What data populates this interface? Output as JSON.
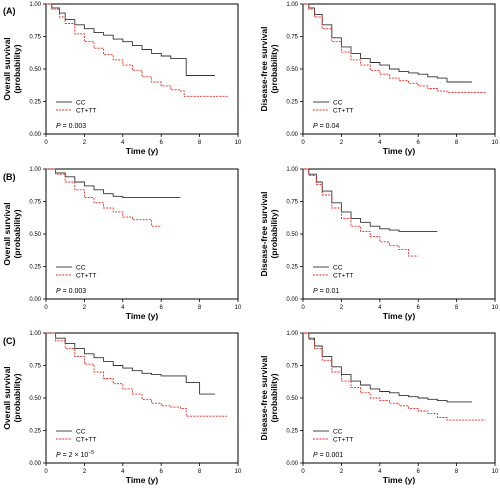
{
  "chart_data": [
    {
      "panel": "A",
      "type": "line",
      "ylabel_line1": "Overall survival",
      "ylabel_line2": "(probability)",
      "xlabel": "Time (y)",
      "xlim": [
        0,
        10
      ],
      "ylim": [
        0,
        1
      ],
      "xticks": [
        "0",
        "2",
        "4",
        "6",
        "8",
        "10"
      ],
      "yticks": [
        "0.00",
        "0.25",
        "0.50",
        "0.75",
        "1.00"
      ],
      "pvalue_prefix": "P",
      "pvalue_text": " = 0.003",
      "pvalue_sup": "",
      "series": [
        {
          "name": "CC",
          "color": "#333333",
          "style": "solid",
          "points": [
            [
              0,
              1.0
            ],
            [
              0.3,
              0.97
            ],
            [
              0.7,
              0.93
            ],
            [
              1.0,
              0.88
            ],
            [
              1.5,
              0.84
            ],
            [
              2.0,
              0.81
            ],
            [
              2.5,
              0.78
            ],
            [
              3.0,
              0.76
            ],
            [
              3.5,
              0.73
            ],
            [
              4.0,
              0.71
            ],
            [
              4.5,
              0.68
            ],
            [
              5.0,
              0.65
            ],
            [
              5.5,
              0.62
            ],
            [
              6.0,
              0.6
            ],
            [
              6.5,
              0.58
            ],
            [
              7.0,
              0.58
            ],
            [
              7.3,
              0.45
            ],
            [
              8.8,
              0.45
            ]
          ]
        },
        {
          "name": "CT+TT",
          "color": "#e8271f",
          "style": "dashed",
          "points": [
            [
              0,
              1.0
            ],
            [
              0.3,
              0.96
            ],
            [
              0.7,
              0.9
            ],
            [
              1.0,
              0.85
            ],
            [
              1.5,
              0.77
            ],
            [
              2.0,
              0.71
            ],
            [
              2.5,
              0.66
            ],
            [
              3.0,
              0.61
            ],
            [
              3.5,
              0.57
            ],
            [
              4.0,
              0.53
            ],
            [
              4.5,
              0.49
            ],
            [
              5.0,
              0.44
            ],
            [
              5.5,
              0.4
            ],
            [
              6.0,
              0.37
            ],
            [
              6.5,
              0.34
            ],
            [
              7.0,
              0.33
            ],
            [
              7.2,
              0.29
            ],
            [
              9.5,
              0.29
            ]
          ]
        }
      ]
    },
    {
      "panel": "",
      "type": "line",
      "ylabel_line1": "Disease-free survival",
      "ylabel_line2": "(probability)",
      "xlabel": "Time (y)",
      "xlim": [
        0,
        10
      ],
      "ylim": [
        0,
        1
      ],
      "xticks": [
        "0",
        "2",
        "4",
        "6",
        "8",
        "10"
      ],
      "yticks": [
        "0.00",
        "0.25",
        "0.50",
        "0.75",
        "1.00"
      ],
      "pvalue_prefix": "P",
      "pvalue_text": " = 0.04",
      "pvalue_sup": "",
      "series": [
        {
          "name": "CC",
          "color": "#333333",
          "style": "solid",
          "points": [
            [
              0,
              1.0
            ],
            [
              0.3,
              0.97
            ],
            [
              0.6,
              0.92
            ],
            [
              1.0,
              0.84
            ],
            [
              1.5,
              0.74
            ],
            [
              2.0,
              0.67
            ],
            [
              2.5,
              0.62
            ],
            [
              3.0,
              0.58
            ],
            [
              3.5,
              0.55
            ],
            [
              4.0,
              0.53
            ],
            [
              4.5,
              0.5
            ],
            [
              5.0,
              0.48
            ],
            [
              5.5,
              0.47
            ],
            [
              6.0,
              0.46
            ],
            [
              6.5,
              0.44
            ],
            [
              7.0,
              0.43
            ],
            [
              7.5,
              0.4
            ],
            [
              8.8,
              0.4
            ]
          ]
        },
        {
          "name": "CT+TT",
          "color": "#e8271f",
          "style": "dashed",
          "points": [
            [
              0,
              1.0
            ],
            [
              0.3,
              0.96
            ],
            [
              0.6,
              0.9
            ],
            [
              1.0,
              0.81
            ],
            [
              1.5,
              0.71
            ],
            [
              2.0,
              0.63
            ],
            [
              2.5,
              0.57
            ],
            [
              3.0,
              0.53
            ],
            [
              3.5,
              0.49
            ],
            [
              4.0,
              0.46
            ],
            [
              4.5,
              0.43
            ],
            [
              5.0,
              0.41
            ],
            [
              5.5,
              0.39
            ],
            [
              6.0,
              0.37
            ],
            [
              6.5,
              0.35
            ],
            [
              7.0,
              0.33
            ],
            [
              7.5,
              0.32
            ],
            [
              9.5,
              0.32
            ]
          ]
        }
      ]
    },
    {
      "panel": "B",
      "type": "line",
      "ylabel_line1": "Overall survival",
      "ylabel_line2": "(probability)",
      "xlabel": "Time (y)",
      "xlim": [
        0,
        10
      ],
      "ylim": [
        0,
        1
      ],
      "xticks": [
        "0",
        "2",
        "4",
        "6",
        "8",
        "10"
      ],
      "yticks": [
        "0.00",
        "0.25",
        "0.50",
        "0.75",
        "1.00"
      ],
      "pvalue_prefix": "P",
      "pvalue_text": " = 0.003",
      "pvalue_sup": "",
      "series": [
        {
          "name": "CC",
          "color": "#333333",
          "style": "solid",
          "points": [
            [
              0,
              1.0
            ],
            [
              0.5,
              0.97
            ],
            [
              1.0,
              0.94
            ],
            [
              1.5,
              0.9
            ],
            [
              2.0,
              0.87
            ],
            [
              2.5,
              0.84
            ],
            [
              3.0,
              0.81
            ],
            [
              3.5,
              0.79
            ],
            [
              4.0,
              0.78
            ],
            [
              7.0,
              0.78
            ]
          ]
        },
        {
          "name": "CT+TT",
          "color": "#e8271f",
          "style": "dashed",
          "points": [
            [
              0,
              1.0
            ],
            [
              0.5,
              0.96
            ],
            [
              1.0,
              0.9
            ],
            [
              1.5,
              0.84
            ],
            [
              2.0,
              0.78
            ],
            [
              2.5,
              0.74
            ],
            [
              3.0,
              0.7
            ],
            [
              3.5,
              0.67
            ],
            [
              4.0,
              0.63
            ],
            [
              4.5,
              0.61
            ],
            [
              5.0,
              0.61
            ],
            [
              5.5,
              0.56
            ],
            [
              6.0,
              0.56
            ]
          ]
        }
      ]
    },
    {
      "panel": "",
      "type": "line",
      "ylabel_line1": "Disease-free survival",
      "ylabel_line2": "(probability)",
      "xlabel": "Time (y)",
      "xlim": [
        0,
        10
      ],
      "ylim": [
        0,
        1
      ],
      "xticks": [
        "0",
        "2",
        "4",
        "6",
        "8",
        "10"
      ],
      "yticks": [
        "0.00",
        "0.25",
        "0.50",
        "0.75",
        "1.00"
      ],
      "pvalue_prefix": "P",
      "pvalue_text": " = 0.01",
      "pvalue_sup": "",
      "series": [
        {
          "name": "CC",
          "color": "#333333",
          "style": "solid",
          "points": [
            [
              0,
              1.0
            ],
            [
              0.3,
              0.96
            ],
            [
              0.7,
              0.9
            ],
            [
              1.0,
              0.83
            ],
            [
              1.5,
              0.74
            ],
            [
              2.0,
              0.67
            ],
            [
              2.5,
              0.62
            ],
            [
              3.0,
              0.59
            ],
            [
              3.5,
              0.56
            ],
            [
              4.0,
              0.54
            ],
            [
              4.5,
              0.53
            ],
            [
              5.0,
              0.52
            ],
            [
              7.0,
              0.52
            ]
          ]
        },
        {
          "name": "CT+TT",
          "color": "#e8271f",
          "style": "dashed",
          "points": [
            [
              0,
              1.0
            ],
            [
              0.3,
              0.95
            ],
            [
              0.7,
              0.88
            ],
            [
              1.0,
              0.8
            ],
            [
              1.5,
              0.7
            ],
            [
              2.0,
              0.62
            ],
            [
              2.5,
              0.56
            ],
            [
              3.0,
              0.52
            ],
            [
              3.5,
              0.48
            ],
            [
              4.0,
              0.44
            ],
            [
              4.5,
              0.41
            ],
            [
              5.0,
              0.38
            ],
            [
              5.5,
              0.33
            ],
            [
              6.0,
              0.33
            ]
          ]
        }
      ]
    },
    {
      "panel": "C",
      "type": "line",
      "ylabel_line1": "Overall survival",
      "ylabel_line2": "(probability)",
      "xlabel": "Time (y)",
      "xlim": [
        0,
        10
      ],
      "ylim": [
        0,
        1
      ],
      "xticks": [
        "0",
        "2",
        "4",
        "6",
        "8",
        "10"
      ],
      "yticks": [
        "0.00",
        "0.25",
        "0.50",
        "0.75",
        "1.00"
      ],
      "pvalue_prefix": "P",
      "pvalue_text": " = 2 × 10",
      "pvalue_sup": "−5",
      "series": [
        {
          "name": "CC",
          "color": "#333333",
          "style": "solid",
          "points": [
            [
              0,
              1.0
            ],
            [
              0.5,
              0.96
            ],
            [
              1.0,
              0.92
            ],
            [
              1.5,
              0.88
            ],
            [
              2.0,
              0.84
            ],
            [
              2.5,
              0.81
            ],
            [
              3.0,
              0.78
            ],
            [
              3.5,
              0.75
            ],
            [
              4.0,
              0.73
            ],
            [
              4.5,
              0.71
            ],
            [
              5.0,
              0.69
            ],
            [
              5.5,
              0.68
            ],
            [
              6.0,
              0.67
            ],
            [
              6.5,
              0.67
            ],
            [
              7.0,
              0.67
            ],
            [
              7.3,
              0.62
            ],
            [
              8.0,
              0.53
            ],
            [
              8.8,
              0.53
            ]
          ]
        },
        {
          "name": "CT+TT",
          "color": "#e8271f",
          "style": "dashed",
          "points": [
            [
              0,
              1.0
            ],
            [
              0.5,
              0.94
            ],
            [
              1.0,
              0.88
            ],
            [
              1.5,
              0.82
            ],
            [
              2.0,
              0.76
            ],
            [
              2.5,
              0.7
            ],
            [
              3.0,
              0.65
            ],
            [
              3.5,
              0.61
            ],
            [
              4.0,
              0.57
            ],
            [
              4.5,
              0.53
            ],
            [
              5.0,
              0.49
            ],
            [
              5.5,
              0.46
            ],
            [
              6.0,
              0.44
            ],
            [
              6.5,
              0.43
            ],
            [
              7.0,
              0.42
            ],
            [
              7.3,
              0.36
            ],
            [
              9.5,
              0.36
            ]
          ]
        }
      ]
    },
    {
      "panel": "",
      "type": "line",
      "ylabel_line1": "Disease-free survival",
      "ylabel_line2": "(probability)",
      "xlabel": "Time (y)",
      "xlim": [
        0,
        10
      ],
      "ylim": [
        0,
        1
      ],
      "xticks": [
        "0",
        "2",
        "4",
        "6",
        "8",
        "10"
      ],
      "yticks": [
        "0.00",
        "0.25",
        "0.50",
        "0.75",
        "1.00"
      ],
      "pvalue_prefix": "P",
      "pvalue_text": " = 0.001",
      "pvalue_sup": "",
      "series": [
        {
          "name": "CC",
          "color": "#333333",
          "style": "solid",
          "points": [
            [
              0,
              1.0
            ],
            [
              0.3,
              0.96
            ],
            [
              0.6,
              0.9
            ],
            [
              1.0,
              0.82
            ],
            [
              1.5,
              0.74
            ],
            [
              2.0,
              0.68
            ],
            [
              2.5,
              0.63
            ],
            [
              3.0,
              0.6
            ],
            [
              3.5,
              0.57
            ],
            [
              4.0,
              0.55
            ],
            [
              4.5,
              0.54
            ],
            [
              5.0,
              0.52
            ],
            [
              5.5,
              0.51
            ],
            [
              6.0,
              0.5
            ],
            [
              6.5,
              0.49
            ],
            [
              7.0,
              0.48
            ],
            [
              7.5,
              0.47
            ],
            [
              8.8,
              0.47
            ]
          ]
        },
        {
          "name": "CT+TT",
          "color": "#e8271f",
          "style": "dashed",
          "points": [
            [
              0,
              1.0
            ],
            [
              0.3,
              0.95
            ],
            [
              0.6,
              0.88
            ],
            [
              1.0,
              0.79
            ],
            [
              1.5,
              0.7
            ],
            [
              2.0,
              0.63
            ],
            [
              2.5,
              0.58
            ],
            [
              3.0,
              0.54
            ],
            [
              3.5,
              0.5
            ],
            [
              4.0,
              0.48
            ],
            [
              4.5,
              0.46
            ],
            [
              5.0,
              0.44
            ],
            [
              5.5,
              0.42
            ],
            [
              6.0,
              0.4
            ],
            [
              6.5,
              0.38
            ],
            [
              7.0,
              0.35
            ],
            [
              7.5,
              0.33
            ],
            [
              9.5,
              0.33
            ]
          ]
        }
      ]
    }
  ]
}
